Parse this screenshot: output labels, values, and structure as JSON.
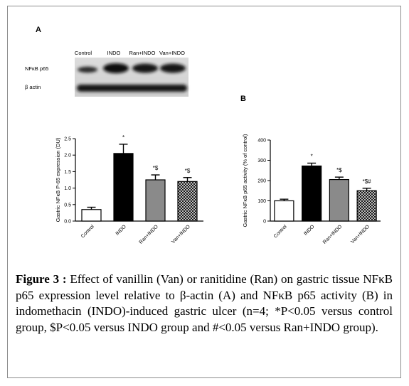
{
  "panel_a": {
    "letter": "A",
    "blot": {
      "lane_labels": [
        "Control",
        "INDO",
        "Ran+INDO",
        "Van+INDO"
      ],
      "row_labels": [
        "NFκB p65",
        "β actin"
      ]
    }
  },
  "panel_b": {
    "letter": "B"
  },
  "chart_data": [
    {
      "type": "bar",
      "panel": "A",
      "categories": [
        "Control",
        "INDO",
        "Ran+INDO",
        "Van+INDO"
      ],
      "values": [
        0.35,
        2.05,
        1.25,
        1.2
      ],
      "errors": [
        0.07,
        0.28,
        0.15,
        0.12
      ],
      "annotations": [
        "",
        "*",
        "*$",
        "*$"
      ],
      "fills": [
        "#ffffff",
        "#000000",
        "#8a8a8a",
        "checker"
      ],
      "ylabel": "Gastric NFκB P-65 expression (DU)",
      "ylim": [
        0,
        2.5
      ],
      "yticks": [
        "0.0",
        "0.5",
        "1.0",
        "1.5",
        "2.0",
        "2.5"
      ],
      "ytick_values": [
        0,
        0.5,
        1.0,
        1.5,
        2.0,
        2.5
      ],
      "grid": false
    },
    {
      "type": "bar",
      "panel": "B",
      "categories": [
        "Control",
        "INDO",
        "Ran+INDO",
        "Van+INDO"
      ],
      "values": [
        100,
        272,
        205,
        150
      ],
      "errors": [
        8,
        14,
        12,
        12
      ],
      "annotations": [
        "",
        "*",
        "*$",
        "*$#"
      ],
      "fills": [
        "#ffffff",
        "#000000",
        "#8a8a8a",
        "checker"
      ],
      "ylabel": "Gastric NFκB p65 activity (% of control)",
      "ylim": [
        0,
        400
      ],
      "yticks": [
        "0",
        "100",
        "200",
        "300",
        "400"
      ],
      "ytick_values": [
        0,
        100,
        200,
        300,
        400
      ],
      "grid": false
    }
  ],
  "caption": {
    "label": "Figure 3 :",
    "text": "Effect of vanillin (Van) or ranitidine (Ran) on gastric tissue NFκB p65 expression level relative to β-actin (A) and NFκB p65 activity (B) in indomethacin (INDO)-induced gastric ulcer (n=4; *P<0.05 versus control group, $P<0.05 versus INDO group and #<0.05 versus Ran+INDO group)."
  }
}
